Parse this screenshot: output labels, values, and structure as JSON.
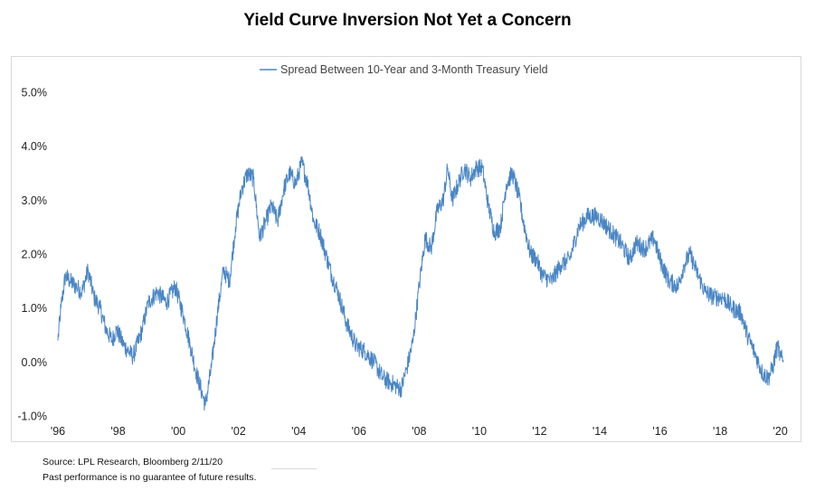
{
  "chart_data": {
    "type": "line",
    "title": "Yield Curve Inversion Not Yet a Concern",
    "xlabel": "",
    "ylabel": "",
    "ylim": [
      -1.0,
      5.0
    ],
    "xlim": [
      1996.0,
      2020.1
    ],
    "y_ticks": [
      -1.0,
      0.0,
      1.0,
      2.0,
      3.0,
      4.0,
      5.0
    ],
    "y_tick_labels": [
      "-1.0%",
      "0.0%",
      "1.0%",
      "2.0%",
      "3.0%",
      "4.0%",
      "5.0%"
    ],
    "x_ticks": [
      1996,
      1998,
      2000,
      2002,
      2004,
      2006,
      2008,
      2010,
      2012,
      2014,
      2016,
      2018,
      2020
    ],
    "x_tick_labels": [
      "'96",
      "'98",
      "'00",
      "'02",
      "'04",
      "'06",
      "'08",
      "'10",
      "'12",
      "'14",
      "'16",
      "'18",
      "'20"
    ],
    "grid": false,
    "legend_position": "top-center",
    "line_color": "#4a86c5",
    "series": [
      {
        "name": "Spread Between 10-Year and 3-Month Treasury Yield",
        "x": [
          1996.0,
          1996.1,
          1996.25,
          1996.4,
          1996.6,
          1996.8,
          1997.0,
          1997.2,
          1997.4,
          1997.6,
          1997.8,
          1997.95,
          1998.2,
          1998.5,
          1998.8,
          1999.0,
          1999.3,
          1999.6,
          1999.9,
          2000.2,
          2000.4,
          2000.6,
          2000.8,
          2000.9,
          2001.1,
          2001.3,
          2001.5,
          2001.7,
          2001.9,
          2002.1,
          2002.3,
          2002.5,
          2002.7,
          2002.9,
          2003.1,
          2003.3,
          2003.5,
          2003.7,
          2003.9,
          2004.1,
          2004.3,
          2004.5,
          2004.7,
          2004.9,
          2005.1,
          2005.3,
          2005.6,
          2005.9,
          2006.2,
          2006.5,
          2006.8,
          2007.1,
          2007.4,
          2007.6,
          2007.8,
          2008.0,
          2008.2,
          2008.4,
          2008.6,
          2008.8,
          2008.95,
          2009.1,
          2009.3,
          2009.5,
          2009.7,
          2009.9,
          2010.1,
          2010.3,
          2010.5,
          2010.7,
          2010.9,
          2011.1,
          2011.3,
          2011.5,
          2011.7,
          2011.9,
          2012.1,
          2012.4,
          2012.7,
          2013.0,
          2013.3,
          2013.6,
          2013.9,
          2014.1,
          2014.4,
          2014.7,
          2015.0,
          2015.2,
          2015.5,
          2015.8,
          2016.0,
          2016.3,
          2016.6,
          2016.8,
          2017.0,
          2017.2,
          2017.5,
          2017.8,
          2018.1,
          2018.4,
          2018.7,
          2018.9,
          2019.2,
          2019.4,
          2019.6,
          2019.75,
          2019.9,
          2020.0,
          2020.1
        ],
        "values": [
          0.4,
          1.0,
          1.6,
          1.5,
          1.4,
          1.3,
          1.7,
          1.2,
          1.0,
          0.6,
          0.4,
          0.6,
          0.3,
          0.1,
          0.6,
          1.1,
          1.3,
          1.1,
          1.4,
          0.8,
          0.3,
          -0.2,
          -0.6,
          -0.8,
          -0.1,
          0.9,
          1.7,
          1.5,
          2.5,
          3.2,
          3.5,
          3.4,
          2.3,
          2.6,
          2.9,
          2.6,
          3.2,
          3.5,
          3.3,
          3.7,
          3.3,
          2.6,
          2.4,
          2.0,
          1.6,
          1.3,
          0.7,
          0.3,
          0.2,
          0.0,
          -0.3,
          -0.4,
          -0.5,
          -0.1,
          0.4,
          1.4,
          2.3,
          2.1,
          2.8,
          3.0,
          3.6,
          3.0,
          3.3,
          3.6,
          3.4,
          3.6,
          3.6,
          2.9,
          2.4,
          2.5,
          3.3,
          3.5,
          3.1,
          2.5,
          2.0,
          1.9,
          1.6,
          1.5,
          1.8,
          1.9,
          2.5,
          2.7,
          2.7,
          2.6,
          2.4,
          2.2,
          1.9,
          2.2,
          2.1,
          2.3,
          1.9,
          1.5,
          1.4,
          1.8,
          2.0,
          1.7,
          1.3,
          1.2,
          1.2,
          1.0,
          0.9,
          0.5,
          0.1,
          -0.2,
          -0.3,
          -0.1,
          0.3,
          0.1,
          0.0
        ]
      }
    ]
  },
  "footer": {
    "source": "Source: LPL Research, Bloomberg 2/11/20",
    "disclaimer": "Past performance is no guarantee of future results."
  }
}
